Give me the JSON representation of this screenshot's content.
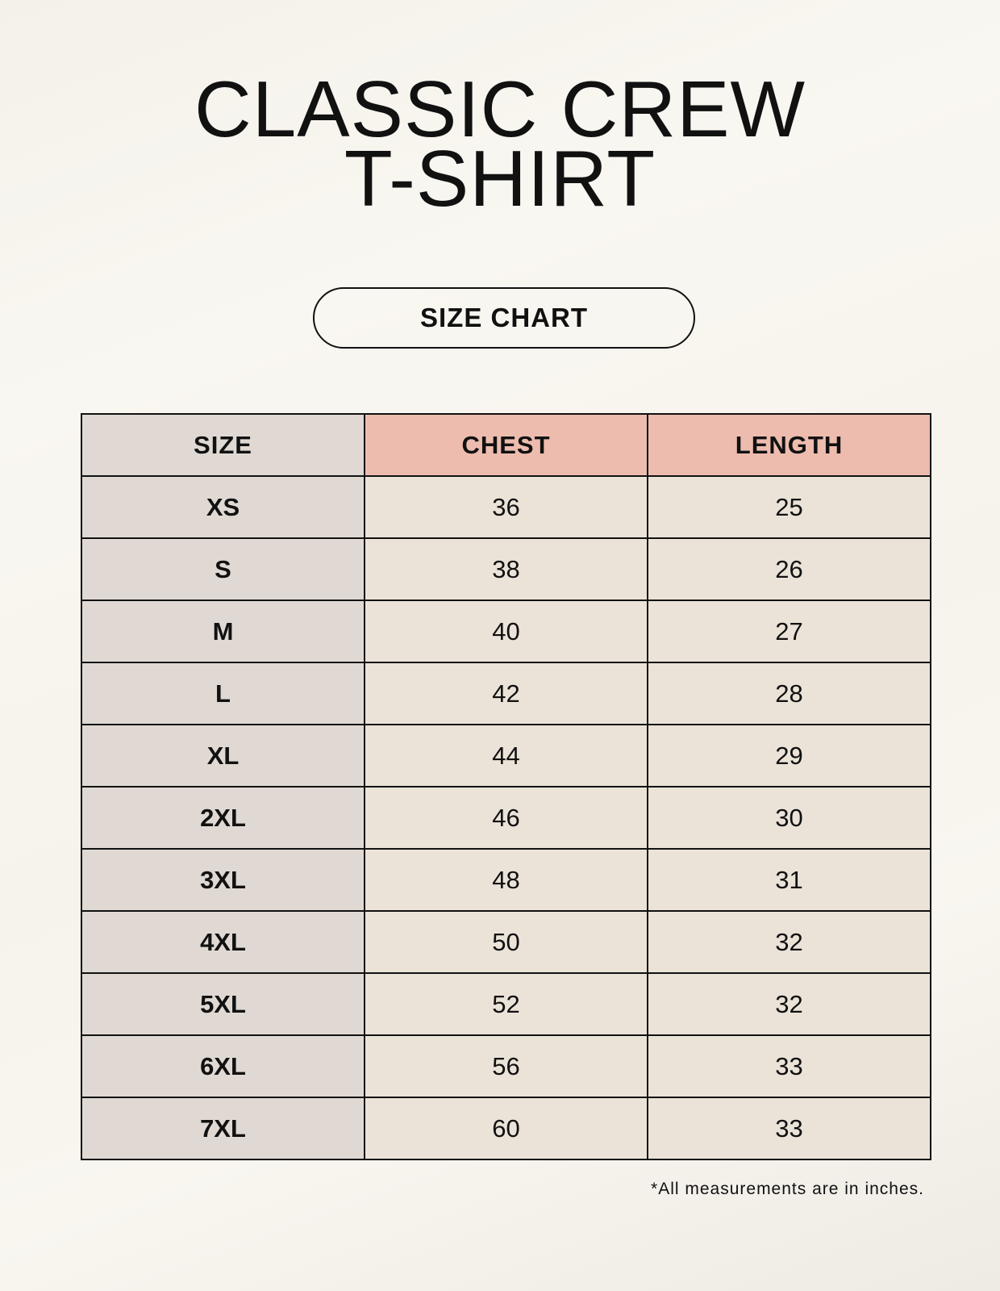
{
  "title": {
    "line1": "CLASSIC CREW",
    "line2": "T-SHIRT"
  },
  "badge": "SIZE CHART",
  "table": {
    "headers": [
      "SIZE",
      "CHEST",
      "LENGTH"
    ],
    "rows": [
      [
        "XS",
        "36",
        "25"
      ],
      [
        "S",
        "38",
        "26"
      ],
      [
        "M",
        "40",
        "27"
      ],
      [
        "L",
        "42",
        "28"
      ],
      [
        "XL",
        "44",
        "29"
      ],
      [
        "2XL",
        "46",
        "30"
      ],
      [
        "3XL",
        "48",
        "31"
      ],
      [
        "4XL",
        "50",
        "32"
      ],
      [
        "5XL",
        "52",
        "32"
      ],
      [
        "6XL",
        "56",
        "33"
      ],
      [
        "7XL",
        "60",
        "33"
      ]
    ]
  },
  "footnote": "*All measurements are in inches.",
  "colors": {
    "background": "#f8f5ef",
    "size_column": "#e0d9d3",
    "header_accent": "#edbcae",
    "cell": "#ebe3d8"
  }
}
